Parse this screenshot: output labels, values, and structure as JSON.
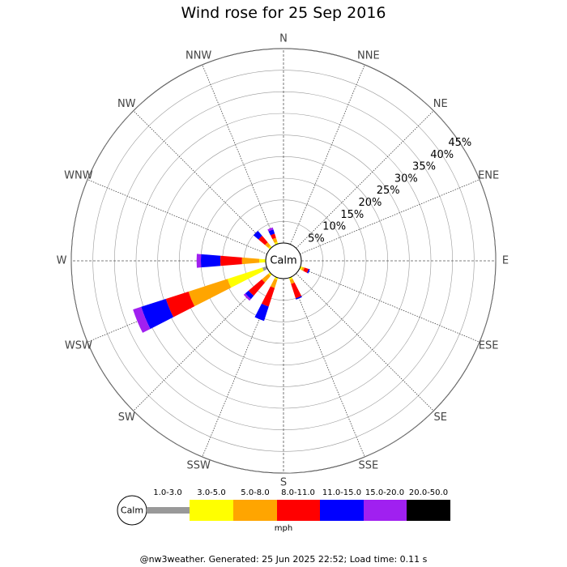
{
  "title": "Wind rose for 25 Sep 2016",
  "footer": "@nw3weather. Generated: 25 Jun 2025 22:52; Load time: 0.11 s",
  "chart_data": {
    "type": "windrose",
    "title": "Wind rose for 25 Sep 2016",
    "directions": [
      "N",
      "NNE",
      "NE",
      "ENE",
      "E",
      "ESE",
      "SE",
      "SSE",
      "S",
      "SSW",
      "SW",
      "WSW",
      "W",
      "WNW",
      "NW",
      "NNW"
    ],
    "radial_ticks": [
      "5%",
      "10%",
      "15%",
      "20%",
      "25%",
      "30%",
      "35%",
      "40%",
      "45%"
    ],
    "radial_max": 45,
    "calm_label": "Calm",
    "calm_percent": 4.5,
    "unit_label": "mph",
    "bins": [
      {
        "label": "1.0-3.0",
        "color": "#999999"
      },
      {
        "label": "3.0-5.0",
        "color": "#ffff00"
      },
      {
        "label": "5.0-8.0",
        "color": "#ffa500"
      },
      {
        "label": "8.0-11.0",
        "color": "#ff0000"
      },
      {
        "label": "11.0-15.0",
        "color": "#0000ff"
      },
      {
        "label": "15.0-20.0",
        "color": "#a020f0"
      },
      {
        "label": "20.0-50.0",
        "color": "#000000"
      }
    ],
    "frequencies_percent": {
      "N": [
        0,
        0,
        0,
        0,
        0,
        0,
        0
      ],
      "NNE": [
        0,
        0,
        0,
        0,
        0,
        0,
        0
      ],
      "NE": [
        0,
        0,
        0,
        0,
        0,
        0,
        0
      ],
      "ENE": [
        0,
        0,
        0,
        0,
        0,
        0,
        0
      ],
      "E": [
        0,
        0,
        0,
        0,
        0,
        0,
        0
      ],
      "ESE": [
        0,
        0.5,
        0.5,
        1.0,
        0.3,
        0,
        0
      ],
      "SE": [
        0,
        0,
        0,
        0,
        0,
        0,
        0
      ],
      "SSE": [
        0,
        0.5,
        1.0,
        3.5,
        0.3,
        0,
        0
      ],
      "S": [
        0,
        0,
        0,
        0,
        0,
        0,
        0
      ],
      "SSW": [
        0,
        0.5,
        2.0,
        4.5,
        3.5,
        0,
        0
      ],
      "SW": [
        0,
        0.5,
        2.0,
        4.0,
        1.0,
        0.5,
        0
      ],
      "WSW": [
        1.0,
        8.5,
        9.5,
        5.5,
        6.0,
        2.0,
        0
      ],
      "W": [
        0,
        1.5,
        4.0,
        5.0,
        4.5,
        1.0,
        0
      ],
      "WNW": [
        0,
        0,
        0,
        0,
        0,
        0,
        0
      ],
      "NW": [
        0,
        0.5,
        1.0,
        2.0,
        1.5,
        0,
        0
      ],
      "NNW": [
        0,
        0.5,
        1.0,
        1.0,
        1.0,
        0.5,
        0
      ]
    }
  }
}
